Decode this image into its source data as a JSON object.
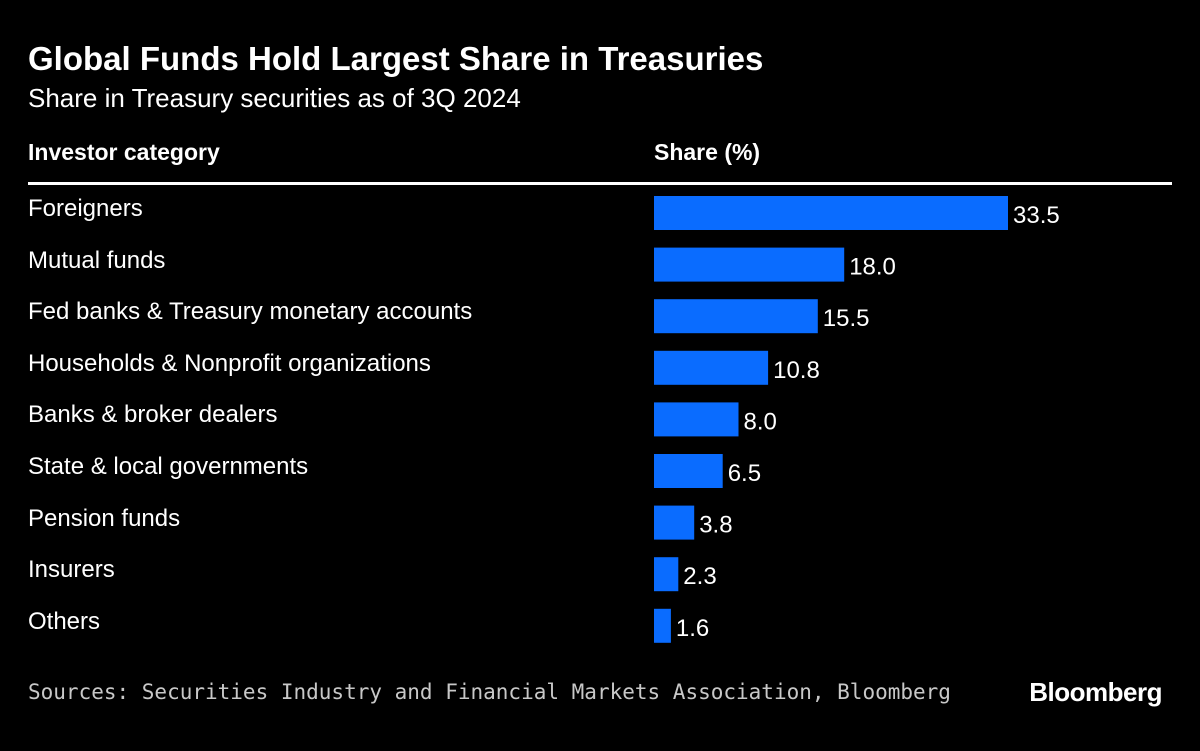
{
  "chart_data": {
    "type": "bar",
    "orientation": "horizontal",
    "title": "Global Funds Hold Largest Share in Treasuries",
    "subtitle": "Share in Treasury securities as of 3Q 2024",
    "category_header": "Investor category",
    "value_header": "Share (%)",
    "categories": [
      "Foreigners",
      "Mutual funds",
      "Fed banks & Treasury monetary accounts",
      "Households & Nonprofit organizations",
      "Banks & broker dealers",
      "State & local governments",
      "Pension funds",
      "Insurers",
      "Others"
    ],
    "values": [
      33.5,
      18.0,
      15.5,
      10.8,
      8.0,
      6.5,
      3.8,
      2.3,
      1.6
    ],
    "value_labels": [
      "33.5",
      "18.0",
      "15.5",
      "10.8",
      "8.0",
      "6.5",
      "3.8",
      "2.3",
      "1.6"
    ],
    "xlim": [
      0,
      33.5
    ],
    "bar_color": "#0a6cff",
    "source": "Sources: Securities Industry and Financial Markets Association, Bloomberg",
    "brand": "Bloomberg"
  }
}
